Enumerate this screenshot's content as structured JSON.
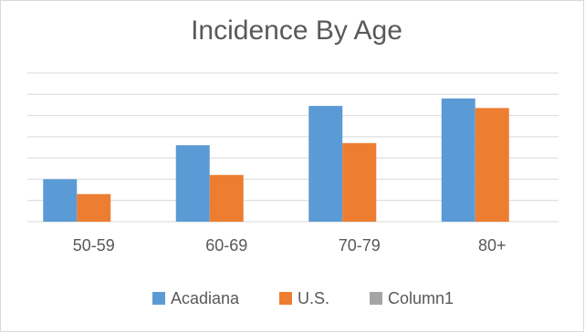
{
  "chart_data": {
    "type": "bar",
    "title": "Incidence By Age",
    "categories": [
      "50-59",
      "60-69",
      "70-79",
      "80+"
    ],
    "series": [
      {
        "name": "Acadiana",
        "color": "#5b9bd5",
        "values": [
          2.0,
          3.6,
          5.45,
          5.8
        ]
      },
      {
        "name": "U.S.",
        "color": "#ed7d31",
        "values": [
          1.3,
          2.2,
          3.7,
          5.35
        ]
      },
      {
        "name": "Column1",
        "color": "#a5a5a5",
        "values": [
          null,
          null,
          null,
          null
        ]
      }
    ],
    "ylim": [
      0,
      7
    ],
    "yticks": [
      0,
      1,
      2,
      3,
      4,
      5,
      6,
      7
    ],
    "grid": true,
    "legend": "bottom"
  }
}
